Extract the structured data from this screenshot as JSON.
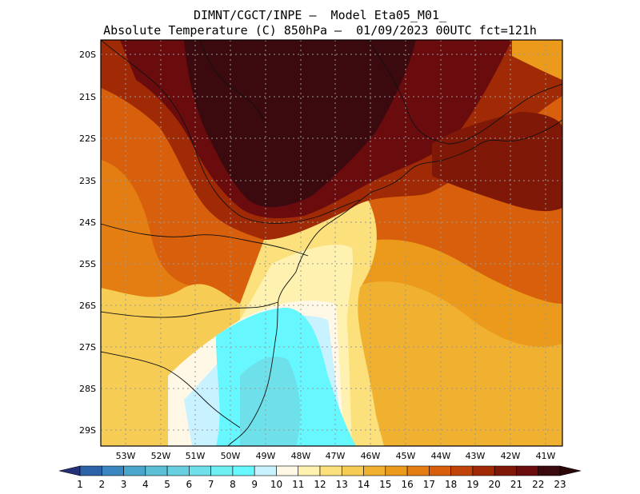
{
  "header": {
    "line1": "DIMNT/CGCT/INPE —  Model Eta05_M01_",
    "line2": "Absolute Temperature (C) 850hPa —  01/09/2023 00UTC fct=121h"
  },
  "map": {
    "lat_labels": [
      "20S",
      "21S",
      "22S",
      "23S",
      "24S",
      "25S",
      "26S",
      "27S",
      "28S",
      "29S"
    ],
    "lon_labels": [
      "53W",
      "52W",
      "51W",
      "50W",
      "49W",
      "48W",
      "47W",
      "46W",
      "45W",
      "44W",
      "43W",
      "42W",
      "41W"
    ]
  },
  "colorbar": {
    "labels": [
      "1",
      "2",
      "3",
      "4",
      "5",
      "6",
      "7",
      "8",
      "9",
      "10",
      "11",
      "12",
      "13",
      "14",
      "15",
      "16",
      "17",
      "18",
      "19",
      "20",
      "21",
      "22",
      "23"
    ],
    "colors": [
      "#2a3a8e",
      "#2b62a8",
      "#3a86c0",
      "#4aa6cc",
      "#5bbfd6",
      "#66cfe0",
      "#6ee0ea",
      "#6ef0f2",
      "#66f7ff",
      "#c8f2ff",
      "#fff8e6",
      "#fff2b0",
      "#fbe07c",
      "#f6cc54",
      "#f0b030",
      "#ec9a1c",
      "#e47e12",
      "#d8600c",
      "#c04408",
      "#a02a06",
      "#801808",
      "#6a0c0e",
      "#3a0a0e"
    ],
    "left_color": "#243078",
    "right_color": "#2a0608"
  }
}
